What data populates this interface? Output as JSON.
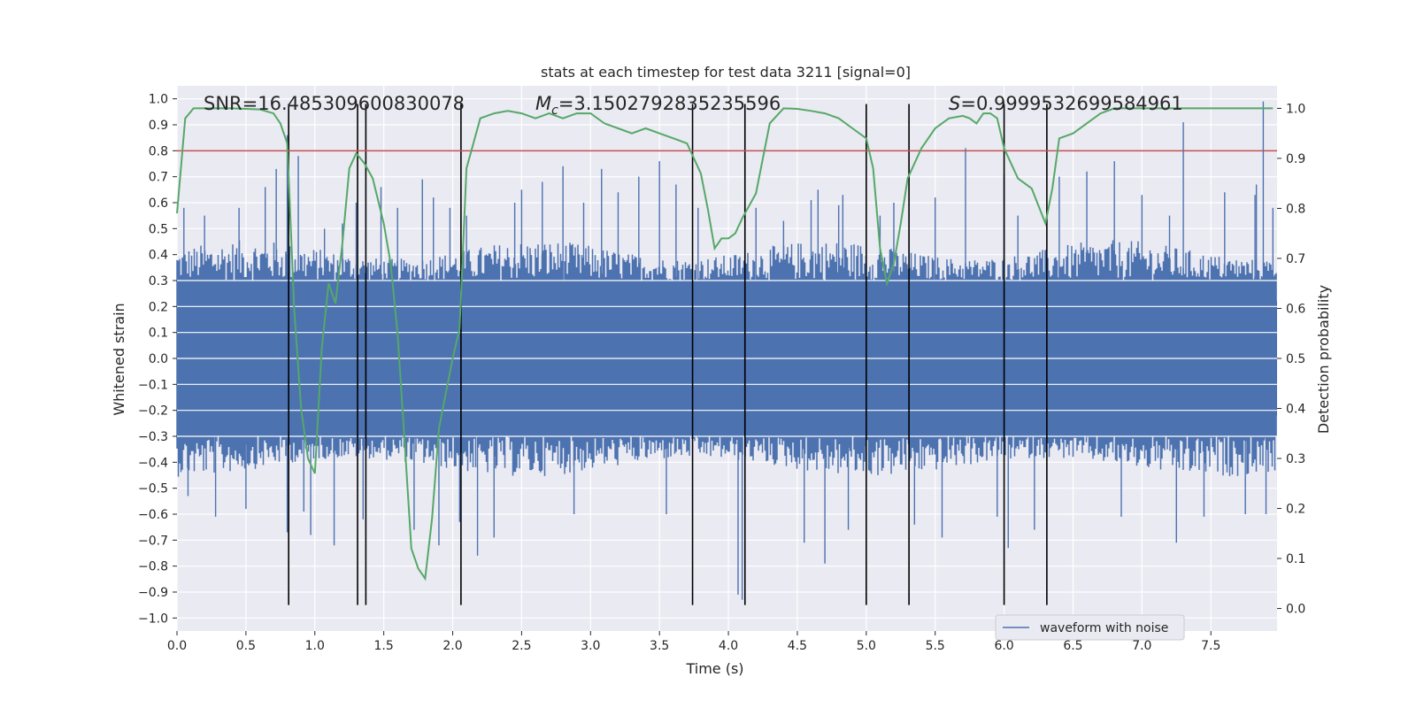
{
  "chart_data": {
    "type": "line",
    "title": "stats at each timestep for test data 3211 [signal=0]",
    "xlabel": "Time (s)",
    "ylabel": "Whitened strain",
    "y2label": "Detection probability",
    "xlim": [
      0.0,
      7.98
    ],
    "ylim": [
      -1.05,
      1.05
    ],
    "y2lim": [
      -0.045,
      1.045
    ],
    "xticks": [
      "0.0",
      "0.5",
      "1.0",
      "1.5",
      "2.0",
      "2.5",
      "3.0",
      "3.5",
      "4.0",
      "4.5",
      "5.0",
      "5.5",
      "6.0",
      "6.5",
      "7.0",
      "7.5"
    ],
    "xtick_values": [
      0,
      0.5,
      1,
      1.5,
      2,
      2.5,
      3,
      3.5,
      4,
      4.5,
      5,
      5.5,
      6,
      6.5,
      7,
      7.5
    ],
    "yticks": [
      "1.0",
      "0.9",
      "0.8",
      "0.7",
      "0.6",
      "0.5",
      "0.4",
      "0.3",
      "0.2",
      "0.1",
      "0.0",
      "−0.1",
      "−0.2",
      "−0.3",
      "−0.4",
      "−0.5",
      "−0.6",
      "−0.7",
      "−0.8",
      "−0.9",
      "−1.0"
    ],
    "ytick_values": [
      1,
      0.9,
      0.8,
      0.7,
      0.6,
      0.5,
      0.4,
      0.3,
      0.2,
      0.1,
      0,
      -0.1,
      -0.2,
      -0.3,
      -0.4,
      -0.5,
      -0.6,
      -0.7,
      -0.8,
      -0.9,
      -1.0
    ],
    "y2ticks": [
      "1.0",
      "0.9",
      "0.8",
      "0.7",
      "0.6",
      "0.5",
      "0.4",
      "0.3",
      "0.2",
      "0.1",
      "0.0"
    ],
    "y2tick_values": [
      1,
      0.9,
      0.8,
      0.7,
      0.6,
      0.5,
      0.4,
      0.3,
      0.2,
      0.1,
      0
    ],
    "annotations": {
      "snr": "SNR=16.485309600830078",
      "mc_symbol": "M",
      "mc_sub": "c",
      "mc_value": "=3.1502792835235596",
      "s_symbol": "S",
      "s_value": "=0.9999532699584961"
    },
    "legend": {
      "label": "waveform with noise",
      "placement": "lower-right"
    },
    "waveform": {
      "name": "waveform with noise",
      "color": "#4c72b0",
      "band_envelope": 0.3,
      "spikes": [
        [
          0.05,
          0.58
        ],
        [
          0.08,
          -0.53
        ],
        [
          0.2,
          0.55
        ],
        [
          0.28,
          -0.61
        ],
        [
          0.45,
          0.58
        ],
        [
          0.5,
          -0.58
        ],
        [
          0.64,
          0.66
        ],
        [
          0.72,
          0.73
        ],
        [
          0.8,
          0.86
        ],
        [
          0.8,
          -0.67
        ],
        [
          0.88,
          0.78
        ],
        [
          0.92,
          -0.59
        ],
        [
          0.97,
          -0.68
        ],
        [
          1.07,
          0.5
        ],
        [
          1.14,
          -0.72
        ],
        [
          1.2,
          0.52
        ],
        [
          1.3,
          0.6
        ],
        [
          1.35,
          -0.62
        ],
        [
          1.48,
          0.66
        ],
        [
          1.6,
          0.58
        ],
        [
          1.72,
          -0.66
        ],
        [
          1.78,
          0.69
        ],
        [
          1.86,
          0.62
        ],
        [
          1.9,
          -0.72
        ],
        [
          1.98,
          0.58
        ],
        [
          2.05,
          -0.63
        ],
        [
          2.1,
          0.55
        ],
        [
          2.18,
          -0.76
        ],
        [
          2.3,
          -0.69
        ],
        [
          2.45,
          0.6
        ],
        [
          2.5,
          0.65
        ],
        [
          2.65,
          0.68
        ],
        [
          2.8,
          0.74
        ],
        [
          2.88,
          -0.6
        ],
        [
          2.95,
          0.6
        ],
        [
          3.08,
          0.73
        ],
        [
          3.2,
          0.64
        ],
        [
          3.35,
          0.7
        ],
        [
          3.5,
          0.76
        ],
        [
          3.55,
          -0.6
        ],
        [
          3.62,
          0.67
        ],
        [
          3.78,
          0.58
        ],
        [
          4.07,
          -0.91
        ],
        [
          4.1,
          -0.93
        ],
        [
          4.2,
          0.58
        ],
        [
          4.4,
          0.53
        ],
        [
          4.55,
          -0.71
        ],
        [
          4.6,
          0.61
        ],
        [
          4.65,
          0.65
        ],
        [
          4.7,
          -0.79
        ],
        [
          4.8,
          0.59
        ],
        [
          4.83,
          0.63
        ],
        [
          4.87,
          -0.66
        ],
        [
          5.1,
          0.55
        ],
        [
          5.2,
          0.6
        ],
        [
          5.35,
          -0.64
        ],
        [
          5.5,
          0.62
        ],
        [
          5.55,
          -0.69
        ],
        [
          5.72,
          0.81
        ],
        [
          5.95,
          -0.61
        ],
        [
          6.0,
          0.71
        ],
        [
          6.03,
          -0.73
        ],
        [
          6.1,
          0.55
        ],
        [
          6.22,
          -0.66
        ],
        [
          6.4,
          0.7
        ],
        [
          6.6,
          0.72
        ],
        [
          6.8,
          0.76
        ],
        [
          6.85,
          -0.61
        ],
        [
          7.0,
          0.63
        ],
        [
          7.2,
          0.55
        ],
        [
          7.25,
          -0.71
        ],
        [
          7.3,
          0.91
        ],
        [
          7.45,
          -0.61
        ],
        [
          7.6,
          0.64
        ],
        [
          7.75,
          -0.6
        ],
        [
          7.82,
          0.63
        ],
        [
          7.83,
          0.67
        ],
        [
          7.88,
          0.99
        ],
        [
          7.9,
          -0.6
        ],
        [
          7.95,
          0.58
        ]
      ]
    },
    "threshold": {
      "name": "threshold",
      "color": "#c44e52",
      "value": 0.8
    },
    "detection_probability": {
      "name": "detection probability",
      "color": "#55a868",
      "x": [
        0.0,
        0.06,
        0.12,
        0.2,
        0.3,
        0.4,
        0.5,
        0.6,
        0.7,
        0.75,
        0.8,
        0.85,
        0.9,
        0.95,
        1.0,
        1.05,
        1.1,
        1.15,
        1.2,
        1.25,
        1.3,
        1.36,
        1.42,
        1.5,
        1.55,
        1.6,
        1.65,
        1.7,
        1.75,
        1.8,
        1.85,
        1.9,
        1.95,
        2.0,
        2.05,
        2.1,
        2.15,
        2.2,
        2.3,
        2.4,
        2.5,
        2.6,
        2.7,
        2.8,
        2.9,
        3.0,
        3.1,
        3.2,
        3.3,
        3.4,
        3.5,
        3.6,
        3.7,
        3.8,
        3.85,
        3.9,
        3.95,
        4.0,
        4.05,
        4.1,
        4.2,
        4.3,
        4.4,
        4.5,
        4.6,
        4.7,
        4.8,
        4.9,
        5.0,
        5.05,
        5.1,
        5.15,
        5.2,
        5.25,
        5.3,
        5.4,
        5.5,
        5.6,
        5.7,
        5.75,
        5.8,
        5.85,
        5.9,
        5.95,
        6.0,
        6.1,
        6.2,
        6.3,
        6.35,
        6.4,
        6.5,
        6.6,
        6.7,
        6.8,
        6.9,
        7.0,
        7.2,
        7.4,
        7.6,
        7.8,
        7.95
      ],
      "values": [
        0.79,
        0.98,
        1.0,
        1.0,
        1.0,
        1.0,
        0.999,
        0.998,
        0.99,
        0.97,
        0.93,
        0.6,
        0.4,
        0.3,
        0.27,
        0.52,
        0.65,
        0.61,
        0.73,
        0.88,
        0.91,
        0.89,
        0.86,
        0.77,
        0.69,
        0.55,
        0.34,
        0.12,
        0.08,
        0.06,
        0.18,
        0.36,
        0.43,
        0.5,
        0.56,
        0.88,
        0.93,
        0.98,
        0.99,
        0.995,
        0.99,
        0.98,
        0.99,
        0.98,
        0.99,
        0.99,
        0.97,
        0.96,
        0.95,
        0.96,
        0.95,
        0.94,
        0.93,
        0.87,
        0.8,
        0.72,
        0.74,
        0.74,
        0.75,
        0.78,
        0.83,
        0.97,
        1.0,
        0.999,
        0.995,
        0.99,
        0.98,
        0.96,
        0.94,
        0.88,
        0.72,
        0.65,
        0.69,
        0.77,
        0.86,
        0.92,
        0.96,
        0.98,
        0.985,
        0.98,
        0.97,
        0.99,
        0.99,
        0.98,
        0.92,
        0.86,
        0.84,
        0.77,
        0.84,
        0.94,
        0.95,
        0.97,
        0.99,
        1.0,
        1.0,
        1.0,
        1.0,
        1.0,
        1.0,
        1.0,
        1.0
      ]
    },
    "event_times": [
      0.81,
      1.31,
      1.37,
      2.06,
      3.74,
      4.12,
      5.0,
      5.31,
      6.0,
      6.31
    ],
    "event_color": "#000000",
    "grid": true
  }
}
